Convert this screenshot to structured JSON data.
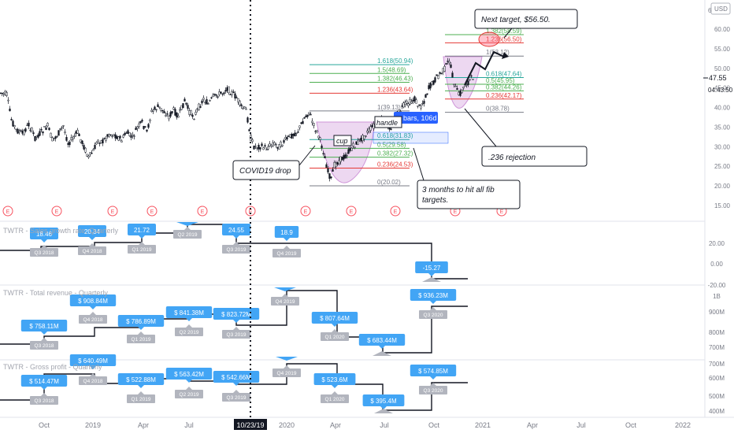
{
  "chart": {
    "currency_badge": "USD",
    "log_toggle": "®"
  },
  "chart_data": [
    {
      "type": "candlestick",
      "price_axis": {
        "ticks": [
          60,
          55,
          50,
          45,
          40,
          35,
          30,
          25,
          20,
          15
        ],
        "labels": [
          "60.00",
          "55.00",
          "50.00",
          "45.00",
          "40.00",
          "35.00",
          "30.00",
          "25.00",
          "20.00",
          "15.00"
        ]
      },
      "last_price": "47.55",
      "countdown": "04:43:50",
      "price_axis_top_label": "6",
      "earnings_marker": "E",
      "fib_left": {
        "levels": [
          {
            "label": "1.618(50.94)",
            "color": "#26a69a"
          },
          {
            "label": "1.5(48.69)",
            "color": "#4caf50"
          },
          {
            "label": "1.382(46.43)",
            "color": "#4caf50"
          },
          {
            "label": "1.236(43.64)",
            "color": "#e53935"
          },
          {
            "label": "1(39.13)",
            "color": "#787b86"
          },
          {
            "label": "0.618(31.83)",
            "color": "#26a69a"
          },
          {
            "label": "0.5(29.58)",
            "color": "#4caf50"
          },
          {
            "label": "0.382(27.32)",
            "color": "#4caf50"
          },
          {
            "label": "0.236(24.53)",
            "color": "#e53935"
          },
          {
            "label": "0(20.02)",
            "color": "#787b86"
          }
        ]
      },
      "fib_right": {
        "levels": [
          {
            "label": "1.382(58.59)",
            "color": "#4caf50"
          },
          {
            "label": "1.236(56.50)",
            "color": "#e53935"
          },
          {
            "label": "1(53.12)",
            "color": "#787b86"
          },
          {
            "label": "0.618(47.64)",
            "color": "#26a69a"
          },
          {
            "label": "0.5(45.95)",
            "color": "#4caf50"
          },
          {
            "label": "0.382(44.26)",
            "color": "#4caf50"
          },
          {
            "label": "0.236(42.17)",
            "color": "#e53935"
          },
          {
            "label": "0(38.78)",
            "color": "#787b86"
          }
        ]
      },
      "annotations": {
        "next_target": "Next target, $56.50.",
        "covid_drop": "COVID19 drop",
        "rejection": ".236 rejection",
        "three_months": "3 months to hit all fib targets.",
        "handle": "handle",
        "cup": "cup",
        "date_range": "bars, 106d"
      }
    },
    {
      "type": "step",
      "title": "TWTR - Sales growth rate, Quarterly",
      "labels": [
        {
          "value": "18.46",
          "quarter": "Q3 2018"
        },
        {
          "value": "20.34",
          "quarter": "Q4 2018"
        },
        {
          "value": "21.72",
          "quarter": "Q1 2019"
        },
        {
          "value": "",
          "quarter": "Q2 2019"
        },
        {
          "value": "24.55",
          "quarter": "Q3 2019"
        },
        {
          "value": "18.9",
          "quarter": "Q4 2019"
        },
        {
          "value": "-15.27",
          "quarter": ""
        }
      ],
      "axis_ticks": [
        "20.00",
        "0.00",
        "-20.00"
      ]
    },
    {
      "type": "step",
      "title": "TWTR - Total revenue - Quarterly",
      "labels": [
        {
          "value": "$ 758.11M",
          "quarter": "Q3 2018"
        },
        {
          "value": "$ 908.84M",
          "quarter": "Q4 2018"
        },
        {
          "value": "$ 786.89M",
          "quarter": "Q1 2019"
        },
        {
          "value": "$ 841.38M",
          "quarter": "Q2 2019"
        },
        {
          "value": "$ 823.72M",
          "quarter": "Q3 2019"
        },
        {
          "value": "",
          "quarter": "Q4 2019"
        },
        {
          "value": "$ 807.64M",
          "quarter": "Q1 2020"
        },
        {
          "value": "$ 683.44M",
          "quarter": ""
        },
        {
          "value": "$ 936.23M",
          "quarter": "Q3 2020"
        }
      ],
      "axis_ticks": [
        "1B",
        "900M",
        "800M",
        "700M"
      ]
    },
    {
      "type": "step",
      "title": "TWTR - Gross profit - Quarterly",
      "labels": [
        {
          "value": "$ 514.47M",
          "quarter": "Q3 2018"
        },
        {
          "value": "$ 640.49M",
          "quarter": "Q4 2018"
        },
        {
          "value": "$ 522.88M",
          "quarter": "Q1 2019"
        },
        {
          "value": "$ 563.42M",
          "quarter": "Q2 2019"
        },
        {
          "value": "$ 542.66M",
          "quarter": "Q3 2019"
        },
        {
          "value": "",
          "quarter": "Q4 2019"
        },
        {
          "value": "$ 523.6M",
          "quarter": "Q1 2020"
        },
        {
          "value": "$ 395.4M",
          "quarter": ""
        },
        {
          "value": "$ 574.85M",
          "quarter": "Q3 2020"
        }
      ],
      "axis_ticks": [
        "700M",
        "600M",
        "500M",
        "400M"
      ]
    }
  ],
  "time_axis": {
    "labels": [
      "Oct",
      "2019",
      "Apr",
      "Jul",
      "2020",
      "Apr",
      "Jul",
      "Oct",
      "2021",
      "Apr",
      "Jul",
      "Oct",
      "2022"
    ],
    "cursor_date": "10/23/19"
  }
}
